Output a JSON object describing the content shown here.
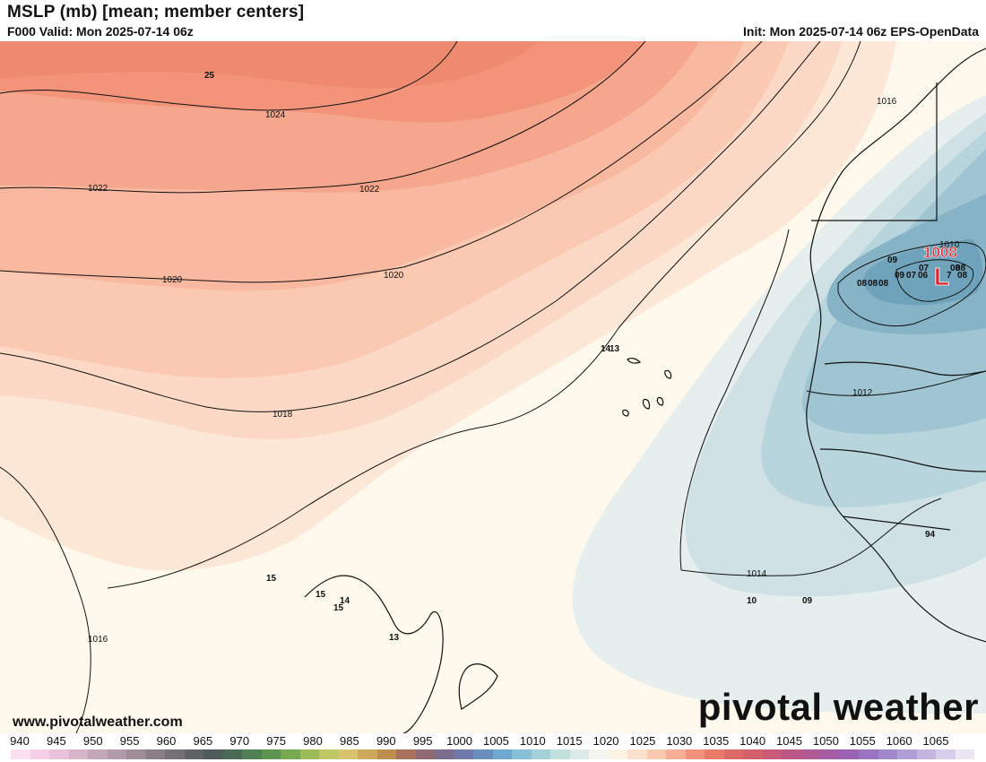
{
  "header": {
    "title": "MSLP (mb) [mean; member centers]",
    "valid": "F000 Valid: Mon 2025-07-14 06z",
    "init": "Init: Mon 2025-07-14 06z EPS-OpenData"
  },
  "map": {
    "contour_labels": [
      "1024",
      "1022",
      "1022",
      "1020",
      "1020",
      "1018",
      "1016",
      "1016",
      "1014",
      "1012",
      "1010"
    ],
    "center_label": "1008",
    "center_symbol": "L",
    "member_labels": [
      "25",
      "15",
      "15",
      "15",
      "14",
      "13",
      "10",
      "09",
      "09",
      "07",
      "08",
      "08",
      "09",
      "07",
      "06",
      "08",
      "08",
      "08",
      "7",
      "08",
      "94",
      "14",
      "13"
    ]
  },
  "footer": {
    "website": "www.pivotalweather.com",
    "brand": "pivotal weather"
  },
  "colorbar": {
    "ticks": [
      "940",
      "945",
      "950",
      "955",
      "960",
      "965",
      "970",
      "975",
      "980",
      "985",
      "990",
      "995",
      "1000",
      "1005",
      "1010",
      "1015",
      "1020",
      "1025",
      "1030",
      "1035",
      "1040",
      "1045",
      "1050",
      "1055",
      "1060",
      "1065"
    ],
    "colors": [
      "#fde0ef",
      "#f6d0e6",
      "#e8c3d9",
      "#d8b5c9",
      "#c5a8b8",
      "#b39aa8",
      "#9e8c97",
      "#8a7e86",
      "#757075",
      "#606265",
      "#4f5a5a",
      "#4a6b55",
      "#4f7f52",
      "#5c9450",
      "#78a850",
      "#9cba58",
      "#bfc766",
      "#d8c46d",
      "#cfa95b",
      "#bf8d4e",
      "#a8735a",
      "#8f6a73",
      "#7d6d8e",
      "#6f7aa8",
      "#6a8fbf",
      "#6fa8cf",
      "#86bfd6",
      "#a2d1da",
      "#c2e0dc",
      "#dde9e6",
      "#f3f4ee",
      "#fdf3e2",
      "#fde1cc",
      "#fcc9b0",
      "#f8ae95",
      "#f2917c",
      "#e87a6a",
      "#dd6a66",
      "#d3606b",
      "#c95a78",
      "#bd5886",
      "#b25a96",
      "#a65da6",
      "#9c63b5",
      "#9a73c2",
      "#a188cc",
      "#b09fd6",
      "#c2b6e0",
      "#d6ceea",
      "#ebe5f4"
    ]
  }
}
